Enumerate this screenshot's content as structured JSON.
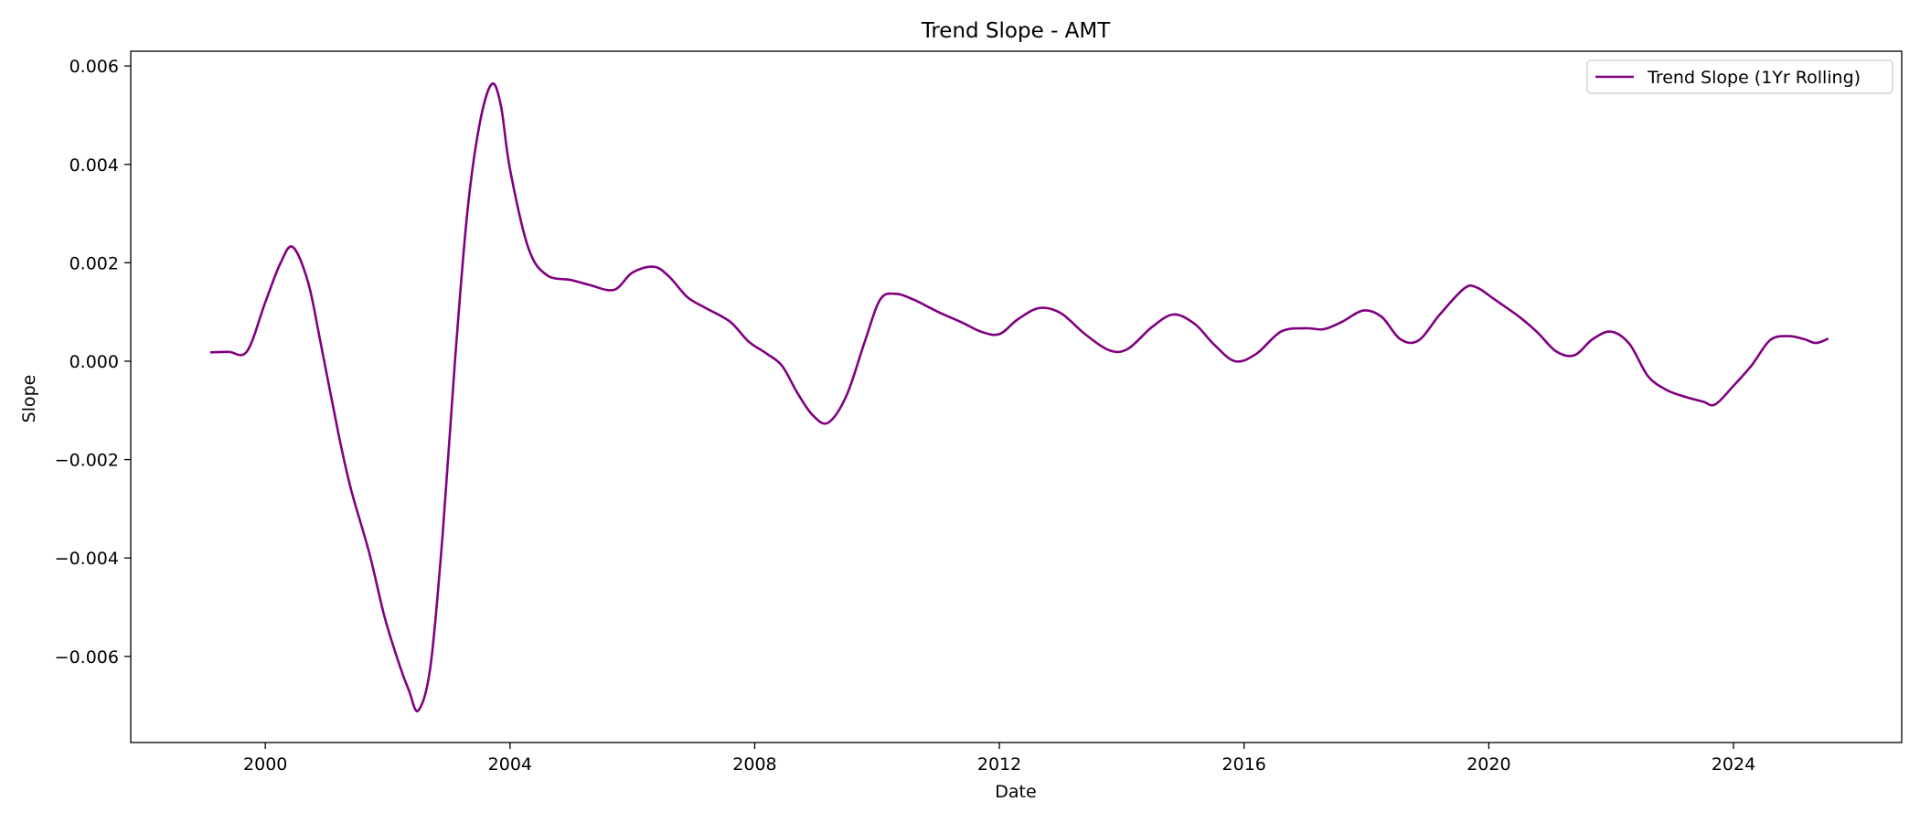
{
  "chart_data": {
    "type": "line",
    "title": "Trend Slope - AMT",
    "xlabel": "Date",
    "ylabel": "Slope",
    "xlim": [
      1997.8,
      2026.75
    ],
    "ylim": [
      -0.00775,
      0.0063
    ],
    "x_ticks": [
      2000,
      2004,
      2008,
      2012,
      2016,
      2020,
      2024
    ],
    "x_tick_labels": [
      "2000",
      "2004",
      "2008",
      "2012",
      "2016",
      "2020",
      "2024"
    ],
    "y_ticks": [
      0.006,
      0.004,
      0.002,
      0.0,
      -0.002,
      -0.004,
      -0.006
    ],
    "y_tick_labels": [
      "0.006",
      "0.004",
      "0.002",
      "0.000",
      "−0.002",
      "−0.004",
      "−0.006"
    ],
    "grid": false,
    "legend_position": "upper right",
    "series": [
      {
        "name": "Trend Slope (1Yr Rolling)",
        "color": "#800080",
        "points": [
          [
            1999.1,
            0.00018
          ],
          [
            1999.4,
            0.00019
          ],
          [
            1999.7,
            0.0002
          ],
          [
            2000.0,
            0.0012
          ],
          [
            2000.25,
            0.002
          ],
          [
            2000.45,
            0.00232
          ],
          [
            2000.7,
            0.0016
          ],
          [
            2000.9,
            0.0004
          ],
          [
            2001.2,
            -0.0015
          ],
          [
            2001.4,
            -0.0026
          ],
          [
            2001.7,
            -0.0039
          ],
          [
            2001.95,
            -0.0052
          ],
          [
            2002.2,
            -0.0062
          ],
          [
            2002.35,
            -0.0067
          ],
          [
            2002.5,
            -0.0071
          ],
          [
            2002.7,
            -0.0062
          ],
          [
            2002.9,
            -0.0035
          ],
          [
            2003.1,
            0.0
          ],
          [
            2003.3,
            0.003
          ],
          [
            2003.5,
            0.0048
          ],
          [
            2003.7,
            0.00563
          ],
          [
            2003.85,
            0.0052
          ],
          [
            2004.0,
            0.0039
          ],
          [
            2004.3,
            0.0023
          ],
          [
            2004.6,
            0.00175
          ],
          [
            2005.0,
            0.00165
          ],
          [
            2005.3,
            0.00155
          ],
          [
            2005.7,
            0.00145
          ],
          [
            2006.0,
            0.0018
          ],
          [
            2006.35,
            0.00192
          ],
          [
            2006.6,
            0.00172
          ],
          [
            2006.9,
            0.0013
          ],
          [
            2007.2,
            0.00108
          ],
          [
            2007.6,
            0.0008
          ],
          [
            2007.9,
            0.0004
          ],
          [
            2008.2,
            0.00015
          ],
          [
            2008.45,
            -0.0001
          ],
          [
            2008.7,
            -0.00065
          ],
          [
            2008.95,
            -0.0011
          ],
          [
            2009.2,
            -0.00125
          ],
          [
            2009.5,
            -0.0007
          ],
          [
            2009.8,
            0.0004
          ],
          [
            2010.05,
            0.00125
          ],
          [
            2010.3,
            0.00137
          ],
          [
            2010.6,
            0.00125
          ],
          [
            2011.0,
            0.001
          ],
          [
            2011.4,
            0.00078
          ],
          [
            2011.7,
            0.0006
          ],
          [
            2012.0,
            0.00055
          ],
          [
            2012.3,
            0.00085
          ],
          [
            2012.65,
            0.00108
          ],
          [
            2013.0,
            0.00098
          ],
          [
            2013.4,
            0.00055
          ],
          [
            2013.8,
            0.00022
          ],
          [
            2014.1,
            0.00025
          ],
          [
            2014.5,
            0.0007
          ],
          [
            2014.85,
            0.00095
          ],
          [
            2015.2,
            0.00075
          ],
          [
            2015.5,
            0.00035
          ],
          [
            2015.85,
            0.0
          ],
          [
            2016.2,
            0.00015
          ],
          [
            2016.6,
            0.0006
          ],
          [
            2017.0,
            0.00067
          ],
          [
            2017.3,
            0.00065
          ],
          [
            2017.6,
            0.0008
          ],
          [
            2017.95,
            0.00103
          ],
          [
            2018.25,
            0.0009
          ],
          [
            2018.55,
            0.00045
          ],
          [
            2018.85,
            0.00042
          ],
          [
            2019.2,
            0.00095
          ],
          [
            2019.6,
            0.00148
          ],
          [
            2019.8,
            0.0015
          ],
          [
            2020.1,
            0.00125
          ],
          [
            2020.5,
            0.0009
          ],
          [
            2020.8,
            0.00058
          ],
          [
            2021.1,
            0.0002
          ],
          [
            2021.4,
            0.00012
          ],
          [
            2021.7,
            0.00045
          ],
          [
            2022.0,
            0.0006
          ],
          [
            2022.3,
            0.00035
          ],
          [
            2022.6,
            -0.0003
          ],
          [
            2022.9,
            -0.00058
          ],
          [
            2023.2,
            -0.00072
          ],
          [
            2023.5,
            -0.00082
          ],
          [
            2023.7,
            -0.00088
          ],
          [
            2024.0,
            -0.0005
          ],
          [
            2024.3,
            -8e-05
          ],
          [
            2024.6,
            0.00043
          ],
          [
            2024.9,
            0.00051
          ],
          [
            2025.15,
            0.00045
          ],
          [
            2025.35,
            0.00037
          ],
          [
            2025.55,
            0.00046
          ]
        ]
      }
    ]
  }
}
